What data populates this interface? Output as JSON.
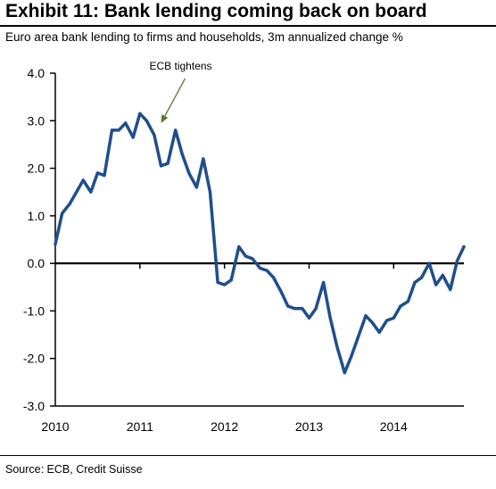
{
  "header": {
    "title": "Exhibit 11: Bank lending coming back on board",
    "subtitle": "Euro area bank lending to firms and households, 3m annualized change %"
  },
  "footer": {
    "source": "Source: ECB, Credit Suisse"
  },
  "chart_data": {
    "type": "line",
    "title": "Exhibit 11: Bank lending coming back on board",
    "subtitle": "Euro area bank lending to firms and households, 3m annualized change %",
    "xlabel": "",
    "ylabel": "",
    "xlim": [
      2010.0,
      2014.83
    ],
    "ylim": [
      -3.0,
      4.0
    ],
    "yticks": [
      4.0,
      3.0,
      2.0,
      1.0,
      0.0,
      -1.0,
      -2.0,
      -3.0
    ],
    "ytick_labels": [
      "4.0",
      "3.0",
      "2.0",
      "1.0",
      "0.0",
      "-1.0",
      "-2.0",
      "-3.0"
    ],
    "xticks": [
      2010,
      2011,
      2012,
      2013,
      2014
    ],
    "xtick_labels": [
      "2010",
      "2011",
      "2012",
      "2013",
      "2014"
    ],
    "grid": false,
    "legend": "none",
    "line_color": "#1f4e8c",
    "annotation": {
      "text": "ECB tightens",
      "x": 2011.25,
      "y": 2.95,
      "arrow_color": "#5a7a2e"
    },
    "series": [
      {
        "values": [
          [
            2010.0,
            0.4
          ],
          [
            2010.08,
            1.05
          ],
          [
            2010.17,
            1.25
          ],
          [
            2010.25,
            1.5
          ],
          [
            2010.33,
            1.75
          ],
          [
            2010.42,
            1.5
          ],
          [
            2010.5,
            1.9
          ],
          [
            2010.58,
            1.85
          ],
          [
            2010.67,
            2.8
          ],
          [
            2010.75,
            2.8
          ],
          [
            2010.83,
            2.95
          ],
          [
            2010.92,
            2.65
          ],
          [
            2011.0,
            3.15
          ],
          [
            2011.08,
            3.0
          ],
          [
            2011.17,
            2.7
          ],
          [
            2011.25,
            2.05
          ],
          [
            2011.33,
            2.1
          ],
          [
            2011.42,
            2.8
          ],
          [
            2011.5,
            2.3
          ],
          [
            2011.58,
            1.9
          ],
          [
            2011.67,
            1.6
          ],
          [
            2011.75,
            2.2
          ],
          [
            2011.83,
            1.5
          ],
          [
            2011.92,
            -0.4
          ],
          [
            2012.0,
            -0.45
          ],
          [
            2012.08,
            -0.35
          ],
          [
            2012.17,
            0.35
          ],
          [
            2012.25,
            0.15
          ],
          [
            2012.33,
            0.1
          ],
          [
            2012.42,
            -0.1
          ],
          [
            2012.5,
            -0.15
          ],
          [
            2012.58,
            -0.3
          ],
          [
            2012.67,
            -0.6
          ],
          [
            2012.75,
            -0.9
          ],
          [
            2012.83,
            -0.95
          ],
          [
            2012.92,
            -0.95
          ],
          [
            2013.0,
            -1.15
          ],
          [
            2013.08,
            -0.95
          ],
          [
            2013.17,
            -0.4
          ],
          [
            2013.25,
            -1.15
          ],
          [
            2013.33,
            -1.75
          ],
          [
            2013.42,
            -2.3
          ],
          [
            2013.5,
            -1.95
          ],
          [
            2013.58,
            -1.55
          ],
          [
            2013.67,
            -1.1
          ],
          [
            2013.75,
            -1.25
          ],
          [
            2013.83,
            -1.45
          ],
          [
            2013.92,
            -1.2
          ],
          [
            2014.0,
            -1.15
          ],
          [
            2014.08,
            -0.9
          ],
          [
            2014.17,
            -0.8
          ],
          [
            2014.25,
            -0.4
          ],
          [
            2014.33,
            -0.3
          ],
          [
            2014.42,
            0.0
          ],
          [
            2014.5,
            -0.45
          ],
          [
            2014.58,
            -0.25
          ],
          [
            2014.67,
            -0.55
          ],
          [
            2014.75,
            0.05
          ],
          [
            2014.83,
            0.35
          ]
        ]
      }
    ]
  }
}
